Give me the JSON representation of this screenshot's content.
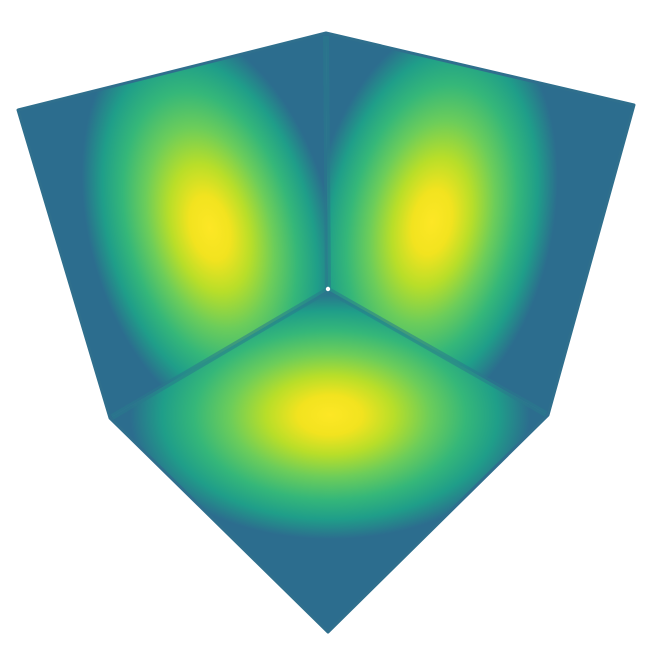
{
  "figure": {
    "shape": "cube",
    "view": "corner-on",
    "visible_faces": [
      "left",
      "right",
      "bottom"
    ],
    "colormap": "viridis",
    "colors": {
      "peak": "#fde725",
      "mid_high": "#a8db34",
      "mid": "#5ec962",
      "mid_low": "#21918c",
      "edge": "#2c6d8e",
      "corner_dot": "#ffffff"
    },
    "hotspots_per_face": 1,
    "center_vertex_marker": "white-dot"
  }
}
